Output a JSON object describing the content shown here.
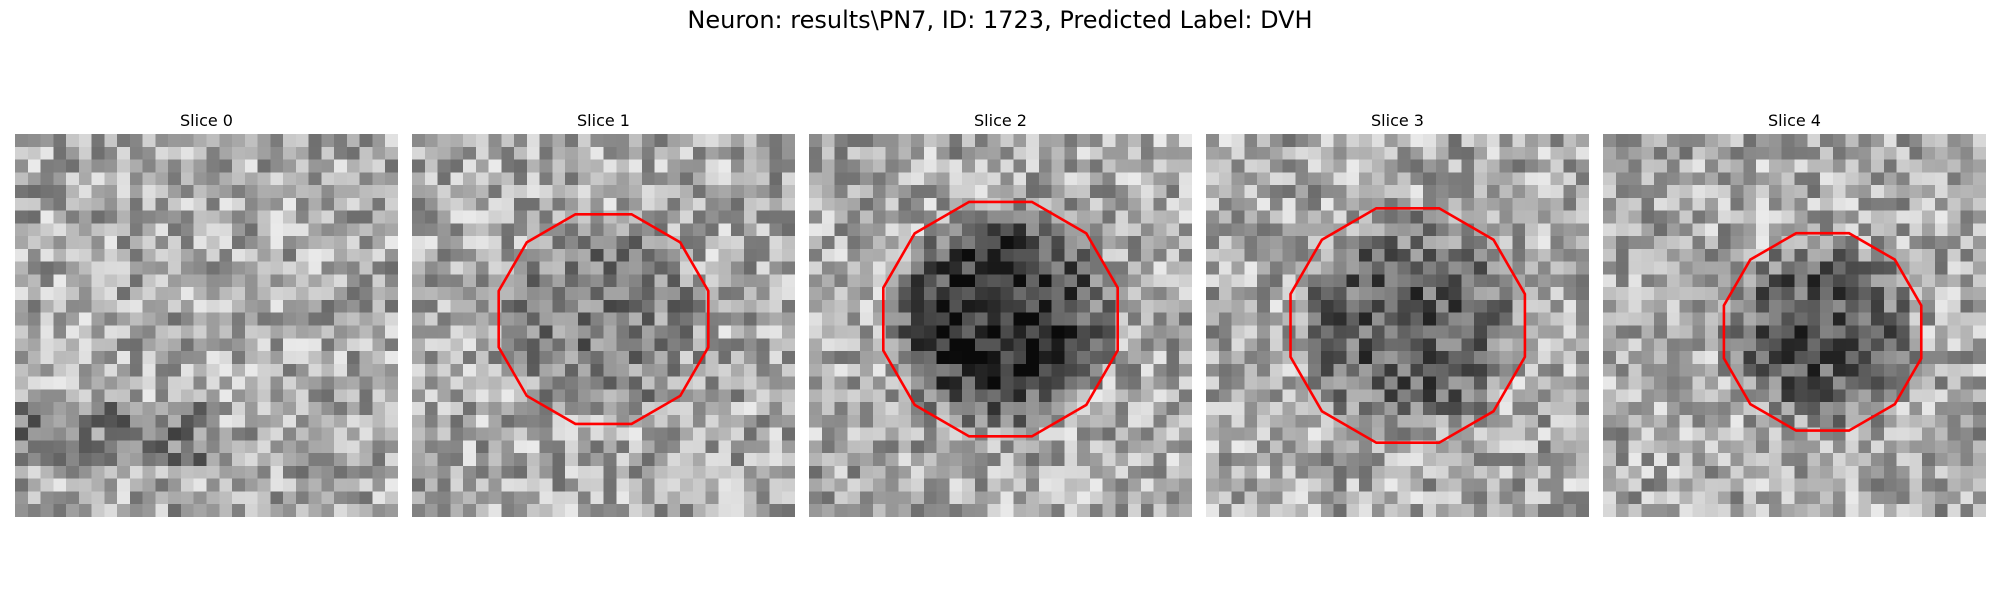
{
  "figure": {
    "title": "Neuron: results\\PN7, ID: 1723, Predicted Label: DVH"
  },
  "grid_size": 30,
  "contour_color": "#ff0000",
  "panels": [
    {
      "title": "Slice 0",
      "seed": 11,
      "has_contour": false,
      "blob_darkness": 0.0
    },
    {
      "title": "Slice 1",
      "seed": 23,
      "has_contour": true,
      "blob_darkness": 0.18
    },
    {
      "title": "Slice 2",
      "seed": 37,
      "has_contour": true,
      "blob_darkness": 0.5
    },
    {
      "title": "Slice 3",
      "seed": 41,
      "has_contour": true,
      "blob_darkness": 0.32
    },
    {
      "title": "Slice 4",
      "seed": 53,
      "has_contour": true,
      "blob_darkness": 0.35
    }
  ]
}
